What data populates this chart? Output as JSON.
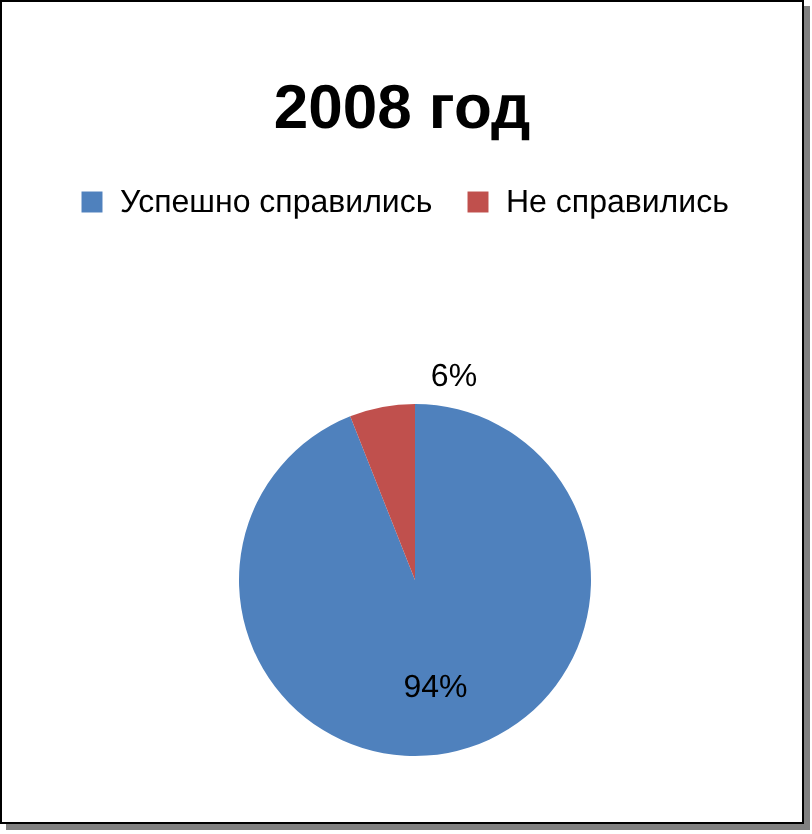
{
  "chart_data": {
    "type": "pie",
    "title": "2008 год",
    "categories": [
      "Успешно справились",
      "Не справились"
    ],
    "values": [
      94,
      6
    ],
    "colors": [
      "#4f81bd",
      "#c0504d"
    ],
    "value_labels": [
      "94%",
      "6%"
    ],
    "legend": "top"
  }
}
